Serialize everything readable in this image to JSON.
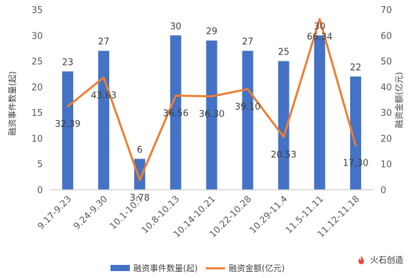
{
  "chart_data": {
    "type": "bar+line",
    "categories": [
      "9.17-9.23",
      "9.24-9.30",
      "10.1-10.7",
      "10.8-10.13",
      "10.14-10.21",
      "10.22-10.28",
      "10.29-11.4",
      "11.5-11.11",
      "11.12-11.18"
    ],
    "series": [
      {
        "name": "融资事件数量(起)",
        "type": "bar",
        "axis": "left",
        "color": "#4472C4",
        "values": [
          23,
          27,
          6,
          30,
          29,
          27,
          25,
          30,
          22
        ]
      },
      {
        "name": "融资金额(亿元)",
        "type": "line",
        "axis": "right",
        "color": "#ED7D31",
        "values": [
          32.39,
          43.63,
          3.78,
          36.56,
          36.3,
          39.1,
          20.53,
          66.34,
          17.3
        ]
      }
    ],
    "ylabel_left": "融资事件数量(起)",
    "ylabel_right": "融资金额(亿元)",
    "ylim_left": [
      0,
      35
    ],
    "yticks_left": [
      0,
      5,
      10,
      15,
      20,
      25,
      30,
      35
    ],
    "ylim_right": [
      0,
      70
    ],
    "yticks_right": [
      0,
      10,
      20,
      30,
      40,
      50,
      60,
      70
    ],
    "grid": false,
    "legend_position": "bottom"
  },
  "watermark": {
    "text": "火石创造"
  }
}
